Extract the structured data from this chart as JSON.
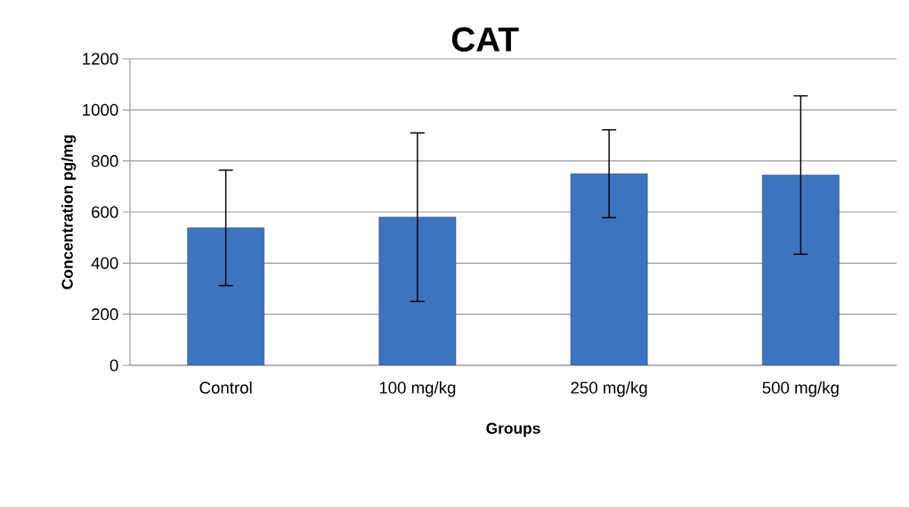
{
  "chart_data": {
    "type": "bar",
    "title": "CAT",
    "xlabel": "Groups",
    "ylabel": "Concentration pg/mg",
    "categories": [
      "Control",
      "100 mg/kg",
      "250 mg/kg",
      "500 mg/kg"
    ],
    "values": [
      538,
      580,
      750,
      745
    ],
    "errors": [
      226,
      330,
      172,
      310
    ],
    "color": "#3d74c2",
    "ylim": [
      0,
      1200
    ],
    "yticks": [
      0,
      200,
      400,
      600,
      800,
      1000,
      1200
    ],
    "grid": "y"
  }
}
